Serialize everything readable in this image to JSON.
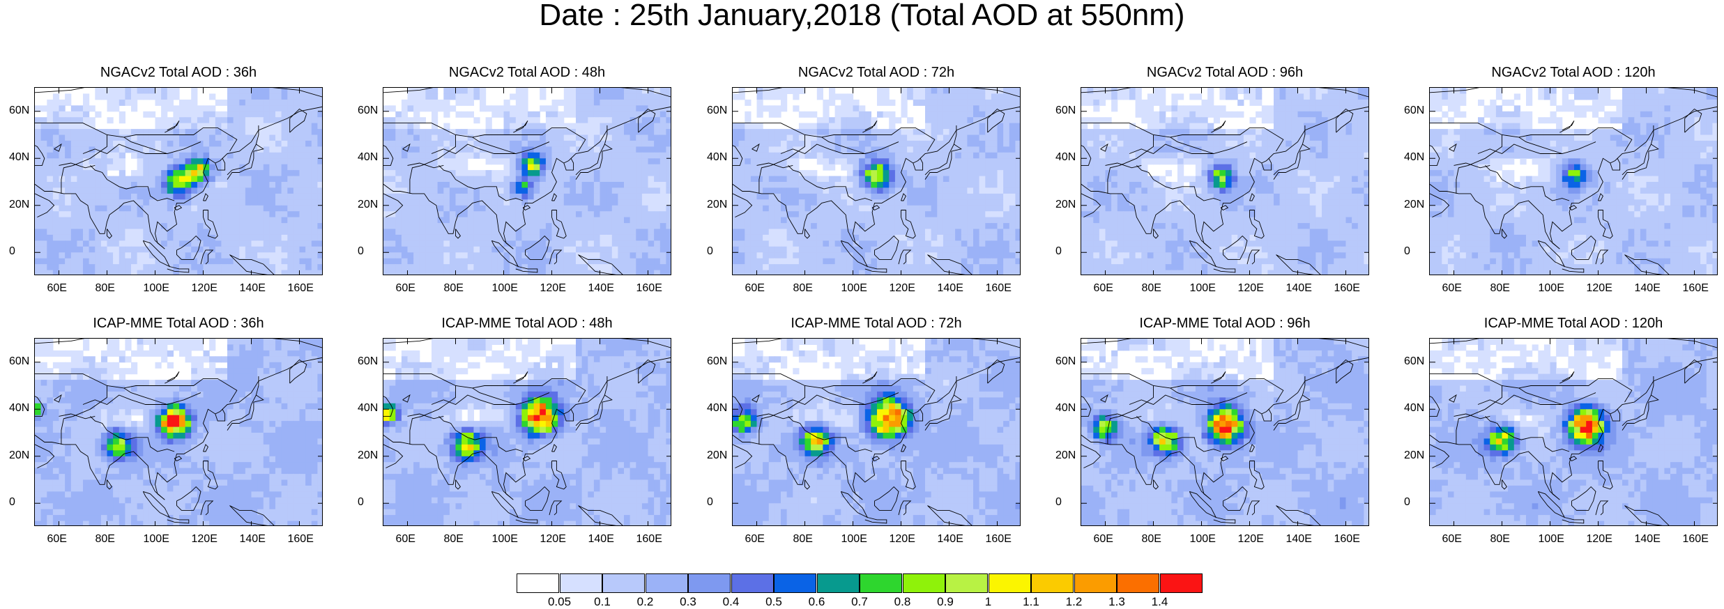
{
  "title": "Date : 25th January,2018 (Total AOD at 550nm)",
  "panels": [
    {
      "title": "NGACv2 Total AOD : 36h",
      "model": "NGACv2",
      "lead": "36h",
      "hotspots": [
        {
          "lon": 110,
          "lat": 30,
          "r": 6,
          "peak": 0.8
        },
        {
          "lon": 118,
          "lat": 35,
          "r": 5,
          "peak": 0.85
        }
      ]
    },
    {
      "title": "NGACv2 Total AOD : 48h",
      "model": "NGACv2",
      "lead": "48h",
      "hotspots": [
        {
          "lon": 112,
          "lat": 37,
          "r": 5,
          "peak": 0.75
        },
        {
          "lon": 108,
          "lat": 27,
          "r": 4,
          "peak": 0.6
        }
      ]
    },
    {
      "title": "NGACv2 Total AOD : 72h",
      "model": "NGACv2",
      "lead": "72h",
      "hotspots": [
        {
          "lon": 110,
          "lat": 33,
          "r": 6,
          "peak": 0.9
        }
      ]
    },
    {
      "title": "NGACv2 Total AOD : 96h",
      "model": "NGACv2",
      "lead": "96h",
      "hotspots": [
        {
          "lon": 108,
          "lat": 32,
          "r": 5,
          "peak": 0.75
        }
      ]
    },
    {
      "title": "NGACv2 Total AOD : 120h",
      "model": "NGACv2",
      "lead": "120h",
      "hotspots": [
        {
          "lon": 110,
          "lat": 33,
          "r": 5,
          "peak": 0.6
        }
      ]
    },
    {
      "title": "ICAP-MME Total AOD : 36h",
      "model": "ICAP-MME",
      "lead": "36h",
      "hotspots": [
        {
          "lon": 108,
          "lat": 35,
          "r": 6,
          "peak": 1.35
        },
        {
          "lon": 85,
          "lat": 25,
          "r": 6,
          "peak": 0.75
        },
        {
          "lon": 50,
          "lat": 40,
          "r": 3,
          "peak": 0.8
        }
      ]
    },
    {
      "title": "ICAP-MME Total AOD : 48h",
      "model": "ICAP-MME",
      "lead": "48h",
      "hotspots": [
        {
          "lon": 115,
          "lat": 37,
          "r": 7,
          "peak": 1.35
        },
        {
          "lon": 85,
          "lat": 25,
          "r": 6,
          "peak": 0.8
        },
        {
          "lon": 52,
          "lat": 38,
          "r": 4,
          "peak": 0.9
        }
      ]
    },
    {
      "title": "ICAP-MME Total AOD : 72h",
      "model": "ICAP-MME",
      "lead": "72h",
      "hotspots": [
        {
          "lon": 115,
          "lat": 36,
          "r": 8,
          "peak": 1.25
        },
        {
          "lon": 85,
          "lat": 27,
          "r": 6,
          "peak": 0.85
        },
        {
          "lon": 55,
          "lat": 35,
          "r": 5,
          "peak": 0.8
        }
      ]
    },
    {
      "title": "ICAP-MME Total AOD : 96h",
      "model": "ICAP-MME",
      "lead": "96h",
      "hotspots": [
        {
          "lon": 110,
          "lat": 33,
          "r": 7,
          "peak": 1.3
        },
        {
          "lon": 85,
          "lat": 27,
          "r": 6,
          "peak": 0.85
        },
        {
          "lon": 60,
          "lat": 32,
          "r": 5,
          "peak": 0.75
        }
      ]
    },
    {
      "title": "ICAP-MME Total AOD : 120h",
      "model": "ICAP-MME",
      "lead": "120h",
      "hotspots": [
        {
          "lon": 115,
          "lat": 33,
          "r": 7,
          "peak": 1.35
        },
        {
          "lon": 80,
          "lat": 27,
          "r": 6,
          "peak": 0.8
        }
      ]
    }
  ],
  "axes": {
    "lon_ticks": [
      "60E",
      "80E",
      "100E",
      "120E",
      "140E",
      "160E"
    ],
    "lat_ticks": [
      "60N",
      "40N",
      "20N",
      "0"
    ]
  },
  "chart_data": {
    "type": "heatmap",
    "title": "Date : 25th January,2018 (Total AOD at 550nm)",
    "lon_range": [
      50,
      170
    ],
    "lat_range": [
      -10,
      70
    ],
    "colorbar": {
      "labels": [
        "0.05",
        "0.1",
        "0.2",
        "0.3",
        "0.4",
        "0.5",
        "0.6",
        "0.7",
        "0.8",
        "0.9",
        "1",
        "1.1",
        "1.2",
        "1.3",
        "1.4"
      ],
      "levels": [
        0.05,
        0.1,
        0.2,
        0.3,
        0.4,
        0.5,
        0.6,
        0.7,
        0.8,
        0.9,
        1,
        1.1,
        1.2,
        1.3,
        1.4
      ],
      "colors": [
        "#ffffff",
        "#d6e0ff",
        "#b8c9fb",
        "#9bb2f7",
        "#7e99f0",
        "#5c70e6",
        "#0a63e6",
        "#079a8e",
        "#2ed62e",
        "#8ff20a",
        "#b8f244",
        "#fbf500",
        "#fbcb00",
        "#fb9c00",
        "#fb6f00",
        "#fb1414"
      ]
    }
  }
}
